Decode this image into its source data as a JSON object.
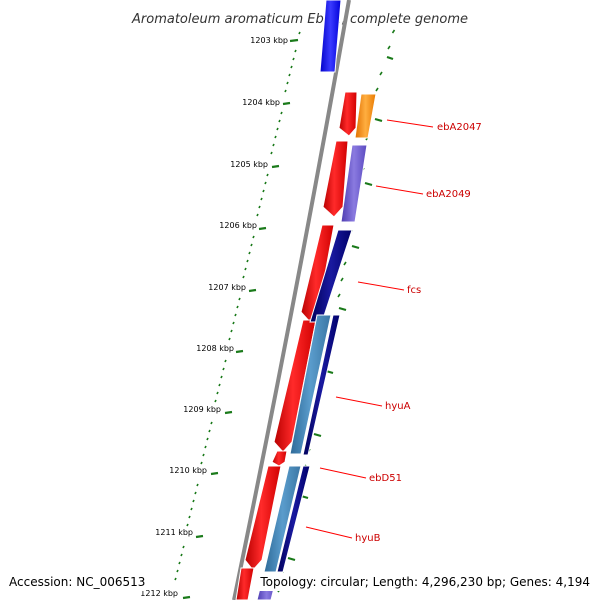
{
  "title": "Aromatoleum aromaticum EbN1, complete genome",
  "footer": {
    "accession": "Accession: NC_006513",
    "summary": "Topology: circular; Length: 4,296,230 bp; Genes: 4,194"
  },
  "kbp_labels": [
    "1203 kbp",
    "1204 kbp",
    "1205 kbp",
    "1206 kbp",
    "1207 kbp",
    "1208 kbp",
    "1209 kbp",
    "1210 kbp",
    "1211 kbp",
    "1212 kbp"
  ],
  "gene_labels": [
    "ebA2047",
    "ebA2049",
    "fcs",
    "hyuA",
    "ebD51",
    "hyuB"
  ],
  "colors": {
    "backbone": "#808080",
    "forward_gene": "#ff0000",
    "reverse_gene_dark": "#000080",
    "reverse_gene_blue": "#0000ff",
    "reverse_gene_mid": "#4682b4",
    "reverse_gene_lavender": "#6a5acd",
    "orange_gene": "#ff8c00",
    "tick_ring": "#1a7a1a",
    "label_line": "#ff0000"
  }
}
